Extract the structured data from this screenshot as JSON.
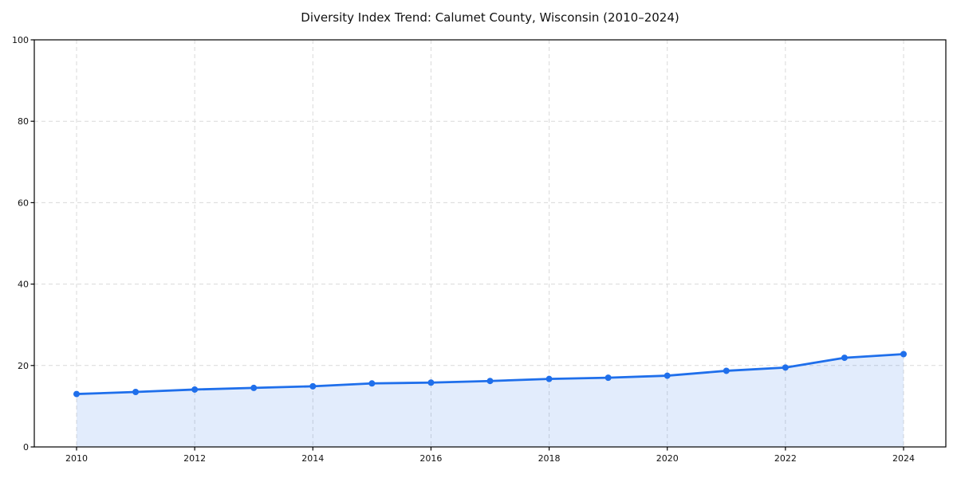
{
  "chart_data": {
    "type": "area",
    "title": "Diversity Index Trend: Calumet County, Wisconsin (2010–2024)",
    "series_name": "Diversity Index",
    "x": [
      2010,
      2011,
      2012,
      2013,
      2014,
      2015,
      2016,
      2017,
      2018,
      2019,
      2020,
      2021,
      2022,
      2023,
      2024
    ],
    "values": [
      13.0,
      13.5,
      14.1,
      14.5,
      14.9,
      15.6,
      15.8,
      16.2,
      16.7,
      17.0,
      17.5,
      18.7,
      19.5,
      21.9,
      22.8
    ],
    "xlabel": "",
    "ylabel": "",
    "ylim": [
      0,
      100
    ],
    "yticks": [
      0,
      20,
      40,
      60,
      80,
      100
    ],
    "ytick_labels": [
      "0",
      "20",
      "40",
      "60",
      "80",
      "100"
    ],
    "xticks": [
      2010,
      2012,
      2014,
      2016,
      2018,
      2020,
      2022,
      2024
    ],
    "xtick_labels": [
      "2010",
      "2012",
      "2014",
      "2016",
      "2018",
      "2020",
      "2022",
      "2024"
    ],
    "grid": true,
    "grid_style": "dashed",
    "legend": "none",
    "marker": "circle",
    "colors": {
      "line": "#1f6feb",
      "marker": "#1f6feb",
      "area_fill": "rgba(31,111,235,0.13)",
      "grid": "#d9d9d9",
      "axis": "#000000",
      "text": "#111111",
      "background": "#ffffff"
    }
  }
}
